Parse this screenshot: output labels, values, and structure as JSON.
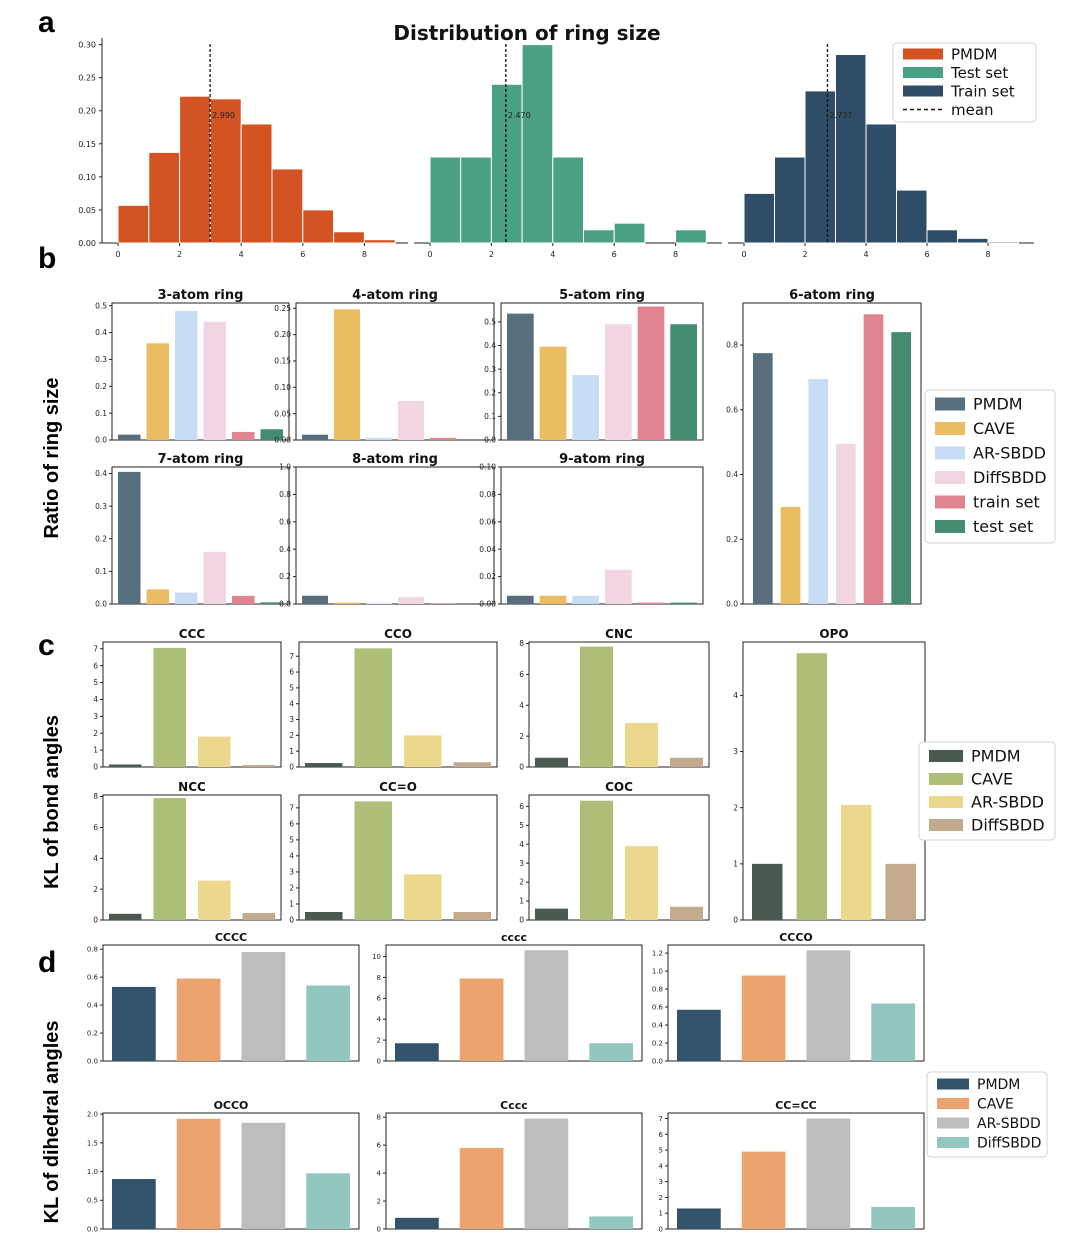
{
  "chart_data": [
    {
      "panel": "a",
      "type": "bar",
      "title": "Distribution of ring size",
      "legend": {
        "placement": "top-right",
        "entries": [
          "PMDM",
          "Test set",
          "Train set",
          "mean"
        ]
      },
      "colors": {
        "PMDM": "#d35322",
        "Test set": "#4aa083",
        "Train set": "#2f4d67"
      },
      "subplots": [
        {
          "series": "PMDM",
          "x": [
            0,
            1,
            2,
            3,
            4,
            5,
            6,
            7,
            8,
            9
          ],
          "values": [
            0.057,
            0.137,
            0.222,
            0.218,
            0.18,
            0.112,
            0.05,
            0.017,
            0.005,
            0
          ],
          "mean": 2.99,
          "mean_label": "2.990",
          "xticks": [
            "0",
            "2",
            "4",
            "6",
            "8"
          ],
          "yticks": [
            "0.00",
            "0.05",
            "0.10",
            "0.15",
            "0.20",
            "0.25",
            "0.30"
          ],
          "ylim": [
            0,
            0.31
          ]
        },
        {
          "series": "Test set",
          "x": [
            0,
            1,
            2,
            3,
            4,
            5,
            6,
            7,
            8,
            9
          ],
          "values": [
            0.13,
            0.13,
            0.24,
            0.3,
            0.13,
            0.02,
            0.03,
            0,
            0.02,
            0
          ],
          "mean": 2.47,
          "mean_label": "2.470",
          "xticks": [
            "0",
            "2",
            "4",
            "6",
            "8"
          ],
          "ylim": [
            0,
            0.31
          ]
        },
        {
          "series": "Train set",
          "x": [
            0,
            1,
            2,
            3,
            4,
            5,
            6,
            7,
            8,
            9
          ],
          "values": [
            0.075,
            0.13,
            0.23,
            0.285,
            0.18,
            0.08,
            0.02,
            0.007,
            0.002,
            0
          ],
          "mean": 2.737,
          "mean_label": "2.737",
          "xticks": [
            "0",
            "2",
            "4",
            "6",
            "8"
          ],
          "ylim": [
            0,
            0.31
          ]
        }
      ]
    },
    {
      "panel": "b",
      "type": "bar",
      "ylabel": "Ratio of ring size",
      "series_names": [
        "PMDM",
        "CAVE",
        "AR-SBDD",
        "DiffSBDD",
        "train set",
        "test set"
      ],
      "colors": [
        "#566e7d",
        "#ebbd63",
        "#c7ddf3",
        "#f2d5e3",
        "#e0848f",
        "#438c70"
      ],
      "legend": {
        "placement": "right"
      },
      "subplots": [
        {
          "title": "3-atom ring",
          "values": [
            0.02,
            0.36,
            0.48,
            0.44,
            0.03,
            0.04
          ],
          "yticks": [
            "0.0",
            "0.1",
            "0.2",
            "0.3",
            "0.4",
            "0.5"
          ],
          "ylim": [
            0,
            0.51
          ]
        },
        {
          "title": "4-atom ring",
          "values": [
            0.01,
            0.248,
            0.004,
            0.074,
            0.004,
            0
          ],
          "yticks": [
            "0.00",
            "0.05",
            "0.10",
            "0.15",
            "0.20",
            "0.25"
          ],
          "ylim": [
            0,
            0.26
          ]
        },
        {
          "title": "5-atom ring",
          "values": [
            0.535,
            0.395,
            0.275,
            0.49,
            0.565,
            0.49
          ],
          "yticks": [
            "0.0",
            "0.1",
            "0.2",
            "0.3",
            "0.4",
            "0.5"
          ],
          "ylim": [
            0,
            0.58
          ]
        },
        {
          "title": "6-atom ring",
          "values": [
            0.775,
            0.3,
            0.695,
            0.495,
            0.895,
            0.84
          ],
          "yticks": [
            "0.0",
            "0.2",
            "0.4",
            "0.6",
            "0.8"
          ],
          "ylim": [
            0,
            0.93
          ]
        },
        {
          "title": "7-atom ring",
          "values": [
            0.405,
            0.045,
            0.035,
            0.16,
            0.025,
            0.005
          ],
          "yticks": [
            "0.0",
            "0.1",
            "0.2",
            "0.3",
            "0.4"
          ],
          "ylim": [
            0,
            0.42
          ]
        },
        {
          "title": "8-atom ring",
          "values": [
            0.06,
            0.01,
            0.005,
            0.05,
            0.002,
            0
          ],
          "yticks": [
            "0.0",
            "0.2",
            "0.4",
            "0.6",
            "0.8",
            "1.0"
          ],
          "ylim": [
            0,
            1.0
          ]
        },
        {
          "title": "9-atom ring",
          "values": [
            0.006,
            0.006,
            0.006,
            0.025,
            0.001,
            0.001
          ],
          "yticks": [
            "0.00",
            "0.02",
            "0.04",
            "0.06",
            "0.08",
            "0.10"
          ],
          "ylim": [
            0,
            0.1
          ]
        }
      ]
    },
    {
      "panel": "c",
      "type": "bar",
      "ylabel": "KL of bond angles",
      "series_names": [
        "PMDM",
        "CAVE",
        "AR-SBDD",
        "DiffSBDD"
      ],
      "colors": [
        "#4a5a51",
        "#adbf76",
        "#ecd88c",
        "#c4aa8d"
      ],
      "legend": {
        "placement": "right"
      },
      "subplots": [
        {
          "title": "CCC",
          "values": [
            0.15,
            7.05,
            1.8,
            0.12
          ],
          "yticks": [
            "0",
            "1",
            "2",
            "3",
            "4",
            "5",
            "6",
            "7"
          ],
          "ylim": [
            0,
            7.4
          ]
        },
        {
          "title": "CCO",
          "values": [
            0.25,
            7.5,
            2.0,
            0.3
          ],
          "yticks": [
            "0",
            "1",
            "2",
            "3",
            "4",
            "5",
            "6",
            "7"
          ],
          "ylim": [
            0,
            7.9
          ]
        },
        {
          "title": "CNC",
          "values": [
            0.6,
            7.8,
            2.85,
            0.6
          ],
          "yticks": [
            "0",
            "2",
            "4",
            "6",
            "8"
          ],
          "ylim": [
            0,
            8.1
          ]
        },
        {
          "title": "OPO",
          "values": [
            1.0,
            4.75,
            2.05,
            1.0
          ],
          "yticks": [
            "0",
            "1",
            "2",
            "3",
            "4"
          ],
          "ylim": [
            0,
            4.95
          ]
        },
        {
          "title": "NCC",
          "values": [
            0.4,
            7.9,
            2.55,
            0.45
          ],
          "yticks": [
            "0",
            "2",
            "4",
            "6",
            "8"
          ],
          "ylim": [
            0,
            8.1
          ]
        },
        {
          "title": "CC=O",
          "values": [
            0.5,
            7.4,
            2.85,
            0.5
          ],
          "yticks": [
            "0",
            "1",
            "2",
            "3",
            "4",
            "5",
            "6",
            "7"
          ],
          "ylim": [
            0,
            7.8
          ]
        },
        {
          "title": "COC",
          "values": [
            0.6,
            6.3,
            3.9,
            0.7
          ],
          "yticks": [
            "0",
            "1",
            "2",
            "3",
            "4",
            "5",
            "6"
          ],
          "ylim": [
            0,
            6.6
          ]
        }
      ]
    },
    {
      "panel": "d",
      "type": "bar",
      "ylabel": "KL of dihedral angles",
      "series_names": [
        "PMDM",
        "CAVE",
        "AR-SBDD",
        "DiffSBDD"
      ],
      "colors": [
        "#33536b",
        "#eba470",
        "#bdbdbd",
        "#93c6bf"
      ],
      "legend": {
        "placement": "right"
      },
      "subplots": [
        {
          "title": "CCCC",
          "values": [
            0.53,
            0.59,
            0.78,
            0.54
          ],
          "yticks": [
            "0.0",
            "0.2",
            "0.4",
            "0.6",
            "0.8"
          ],
          "ylim": [
            0,
            0.83
          ]
        },
        {
          "title": "cccc",
          "values": [
            1.7,
            7.9,
            10.6,
            1.7
          ],
          "yticks": [
            "0",
            "2",
            "4",
            "6",
            "8",
            "10"
          ],
          "ylim": [
            0,
            11.1
          ]
        },
        {
          "title": "CCCO",
          "values": [
            0.57,
            0.95,
            1.23,
            0.64
          ],
          "yticks": [
            "0.0",
            "0.2",
            "0.4",
            "0.6",
            "0.8",
            "1.0",
            "1.2"
          ],
          "ylim": [
            0,
            1.29
          ]
        },
        {
          "title": "OCCO",
          "values": [
            0.87,
            1.92,
            1.85,
            0.97
          ],
          "yticks": [
            "0.0",
            "0.5",
            "1.0",
            "1.5",
            "2.0"
          ],
          "ylim": [
            0,
            2.02
          ]
        },
        {
          "title": "Cccc",
          "values": [
            0.8,
            5.8,
            7.9,
            0.9
          ],
          "yticks": [
            "0",
            "2",
            "4",
            "6",
            "8"
          ],
          "ylim": [
            0,
            8.3
          ]
        },
        {
          "title": "CC=CC",
          "values": [
            1.3,
            4.9,
            7.0,
            1.4
          ],
          "yticks": [
            "0",
            "1",
            "2",
            "3",
            "4",
            "5",
            "6",
            "7"
          ],
          "ylim": [
            0,
            7.35
          ]
        }
      ]
    }
  ]
}
